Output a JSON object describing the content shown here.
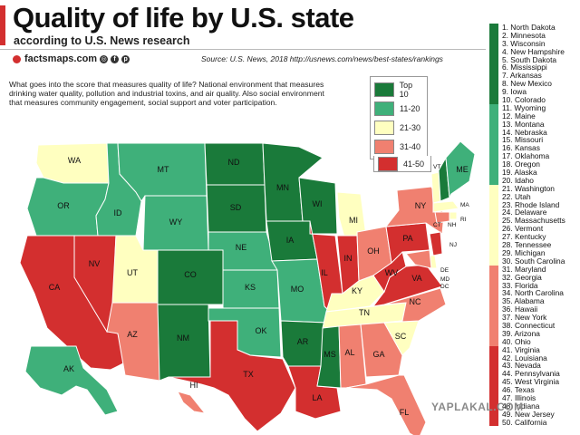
{
  "header": {
    "title": "Quality of life by U.S. state",
    "subtitle": "according to U.S. News research",
    "brand": "factsmaps.com",
    "source": "Source: U.S. News, 2018   http://usnews.com/news/best-states/rankings"
  },
  "description": "What goes into the score that measures quality of life? National environment that measures drinking water quality, pollution and industrial toxins, and air quality. Also social environment that measures community engagement, social support and voter participation.",
  "legend": [
    {
      "label": "Top 10",
      "color": "#1a7a3a"
    },
    {
      "label": "11-20",
      "color": "#3fb07a"
    },
    {
      "label": "21-30",
      "color": "#ffffc0"
    },
    {
      "label": "31-40",
      "color": "#f08070"
    },
    {
      "label": "41-50",
      "color": "#d32f2f"
    }
  ],
  "rankings": [
    "1. North Dakota",
    "2. Minnesota",
    "3. Wisconsin",
    "4. New Hampshire",
    "5. South Dakota",
    "6. Mississippi",
    "7. Arkansas",
    "8. New Mexico",
    "9. Iowa",
    "10. Colorado",
    "11. Wyoming",
    "12. Maine",
    "13. Montana",
    "14. Nebraska",
    "15. Missouri",
    "16. Kansas",
    "17. Oklahoma",
    "18. Oregon",
    "19. Alaska",
    "20. Idaho",
    "21. Washington",
    "22. Utah",
    "23. Rhode Island",
    "24. Delaware",
    "25. Massachusetts",
    "26. Vermont",
    "27. Kentucky",
    "28. Tennessee",
    "29. Michigan",
    "30. South Carolina",
    "31. Maryland",
    "32. Georgia",
    "33. Florida",
    "34. North Carolina",
    "35. Alabama",
    "36. Hawaii",
    "37. New York",
    "38. Connecticut",
    "39. Arizona",
    "40. Ohio",
    "41. Virginia",
    "42. Louisiana",
    "43. Nevada",
    "44. Pennsylvania",
    "45. West Virginia",
    "46. Texas",
    "47. Illinois",
    "48. Indiana",
    "49. New Jersey",
    "50. California"
  ],
  "states": {
    "WA": "21-30",
    "OR": "11-20",
    "CA": "41-50",
    "NV": "41-50",
    "ID": "11-20",
    "MT": "11-20",
    "WY": "11-20",
    "UT": "21-30",
    "AZ": "31-40",
    "CO": "Top 10",
    "NM": "Top 10",
    "ND": "Top 10",
    "SD": "Top 10",
    "NE": "11-20",
    "KS": "11-20",
    "OK": "11-20",
    "TX": "41-50",
    "MN": "Top 10",
    "IA": "Top 10",
    "MO": "11-20",
    "AR": "Top 10",
    "LA": "41-50",
    "WI": "Top 10",
    "IL": "41-50",
    "MI": "21-30",
    "IN": "41-50",
    "OH": "31-40",
    "KY": "21-30",
    "TN": "21-30",
    "MS": "Top 10",
    "AL": "31-40",
    "GA": "31-40",
    "FL": "31-40",
    "SC": "21-30",
    "NC": "31-40",
    "VA": "41-50",
    "WV": "41-50",
    "PA": "41-50",
    "NY": "31-40",
    "VT": "21-30",
    "NH": "Top 10",
    "ME": "11-20",
    "MA": "21-30",
    "RI": "21-30",
    "CT": "31-40",
    "NJ": "41-50",
    "DE": "21-30",
    "MD": "31-40",
    "AK": "11-20",
    "HI": "31-40"
  },
  "extra_labels": [
    "VT",
    "NH",
    "MA",
    "CT",
    "RI",
    "NJ",
    "DE",
    "MD",
    "DC"
  ],
  "watermark": "YAPLAKAL.COM"
}
